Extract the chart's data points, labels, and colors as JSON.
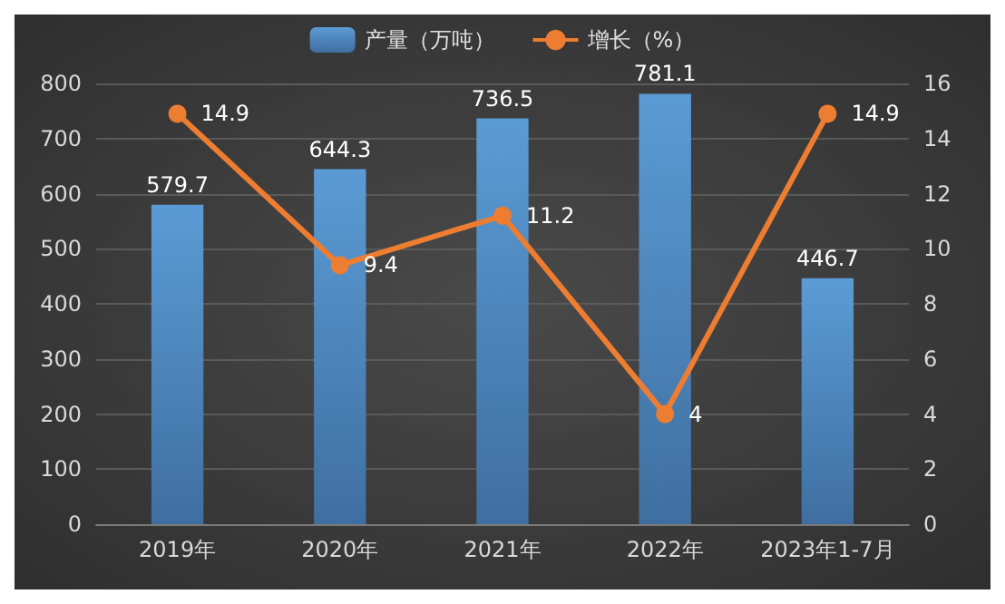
{
  "chart_data": {
    "type": "bar",
    "categories": [
      "2019年",
      "2020年",
      "2021年",
      "2022年",
      "2023年1-7月"
    ],
    "series": [
      {
        "name": "产量（万吨）",
        "color": "#5b9bd5",
        "values": [
          579.7,
          644.3,
          736.5,
          781.1,
          446.7
        ]
      },
      {
        "name": "增长（%）",
        "type": "line",
        "axis": "y2",
        "color": "#ed7d31",
        "values": [
          14.9,
          9.4,
          11.2,
          4,
          14.9
        ]
      }
    ],
    "ylim": [
      0,
      800
    ],
    "yticks": [
      0,
      100,
      200,
      300,
      400,
      500,
      600,
      700,
      800
    ],
    "y2lim": [
      0,
      16
    ],
    "y2ticks": [
      0,
      2,
      4,
      6,
      8,
      10,
      12,
      14,
      16
    ],
    "grid": "y",
    "legend": "top",
    "marker": "circle",
    "data_labels": true
  }
}
